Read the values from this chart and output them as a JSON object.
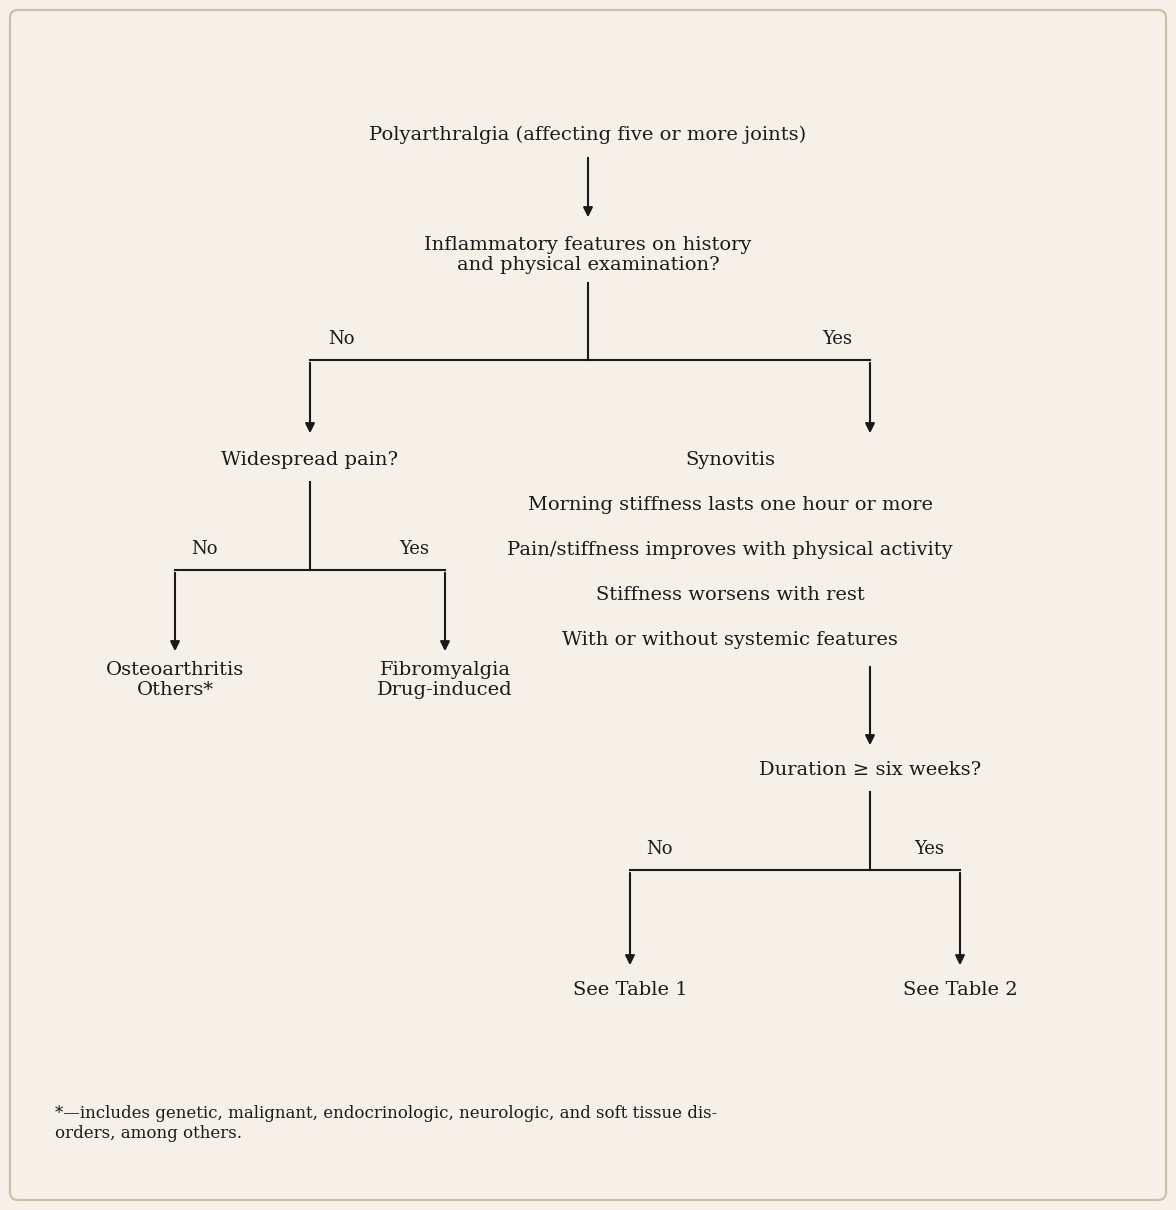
{
  "background_color": "#f5f0e8",
  "border_color": "#c8bfa8",
  "text_color": "#1a1a1a",
  "font_size": 14,
  "font_size_small": 13,
  "title": "Polyarthralgia (affecting five or more joints)",
  "node1": "Inflammatory features on history\nand physical examination?",
  "no_label_left": "No",
  "yes_label_right": "Yes",
  "node2_left": "Widespread pain?",
  "node2_right_lines": [
    "Synovitis",
    "Morning stiffness lasts one hour or more",
    "Pain/stiffness improves with physical activity",
    "Stiffness worsens with rest",
    "With or without systemic features"
  ],
  "no_label_left2": "No",
  "yes_label_right2": "Yes",
  "node3_left1": "Osteoarthritis\nOthers*",
  "node3_left2": "Fibromyalgia\nDrug-induced",
  "node3_right": "Duration ≥ six weeks?",
  "no_label_bottom": "No",
  "yes_label_bottom": "Yes",
  "node4_left": "See Table 1",
  "node4_right": "See Table 2",
  "footnote": "*—includes genetic, malignant, endocrinologic, neurologic, and soft tissue dis-\norders, among others."
}
